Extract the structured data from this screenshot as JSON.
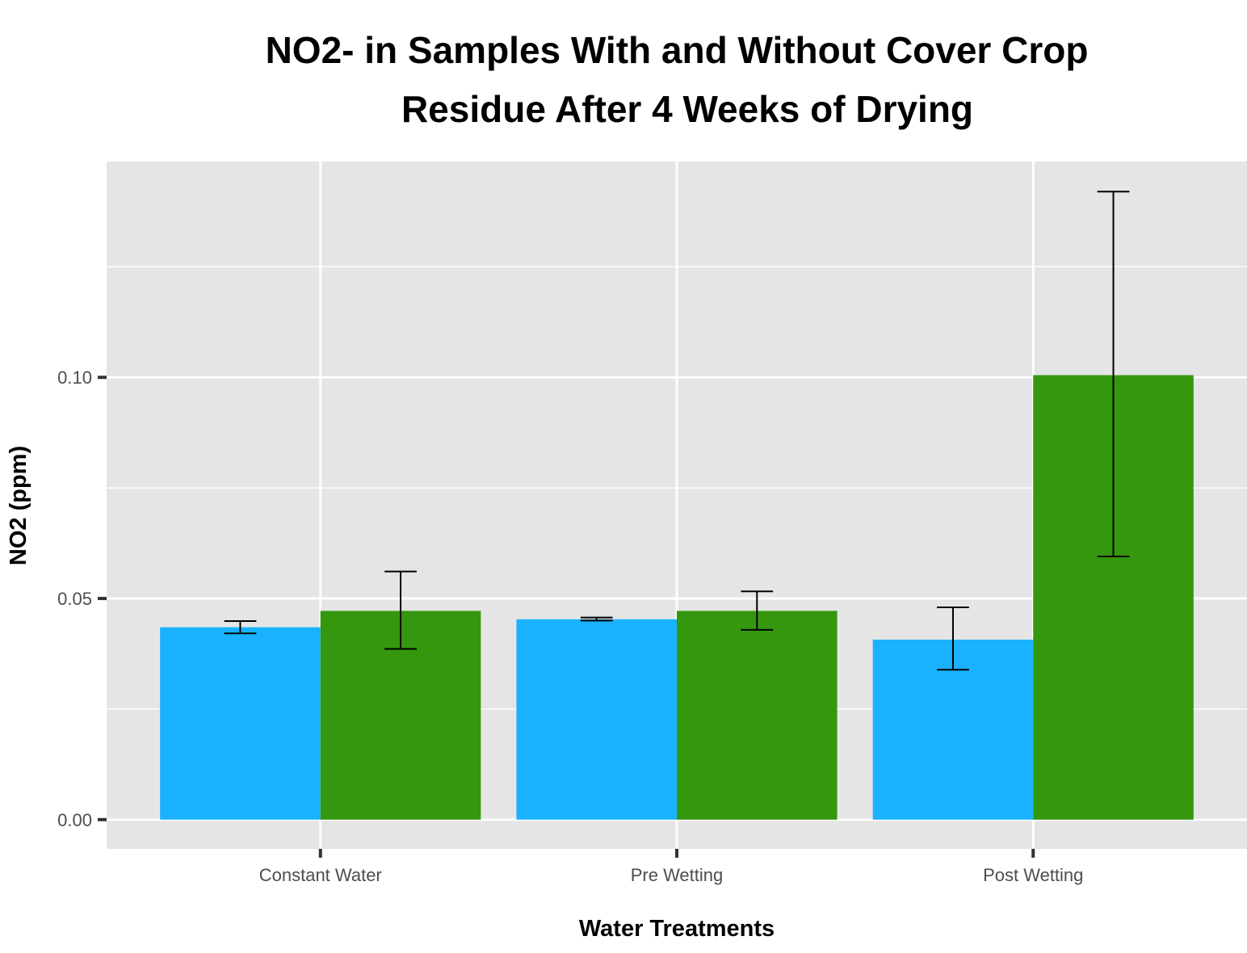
{
  "chart_data": {
    "type": "bar",
    "title_lines": [
      "NO2- in Samples With and Without Cover Crop",
      "Residue After 4 Weeks of Drying"
    ],
    "xlabel": "Water Treatments",
    "ylabel": "NO2 (ppm)",
    "categories": [
      "Constant Water",
      "Pre Wetting",
      "Post Wetting"
    ],
    "series": [
      {
        "color": "#1ab2fe",
        "values": [
          0.0435,
          0.0453,
          0.0407
        ],
        "error_low": [
          0.0421,
          0.045,
          0.0339
        ],
        "error_high": [
          0.0449,
          0.0457,
          0.048
        ]
      },
      {
        "color": "#35970e",
        "values": [
          0.0472,
          0.0472,
          0.1005
        ],
        "error_low": [
          0.0386,
          0.0429,
          0.0595
        ],
        "error_high": [
          0.0561,
          0.0516,
          0.142
        ]
      }
    ],
    "ylim": [
      -0.0066,
      0.1488
    ],
    "y_ticks": [
      0.0,
      0.05,
      0.1
    ],
    "y_tick_labels": [
      "0.00",
      "0.05",
      "0.10"
    ],
    "y_minor_ticks": [
      0.025,
      0.075,
      0.125
    ],
    "grid": true,
    "legend": "none",
    "panel_background": "#e5e5e5",
    "grid_color": "#ffffff",
    "errorbar_color": "#000000"
  }
}
